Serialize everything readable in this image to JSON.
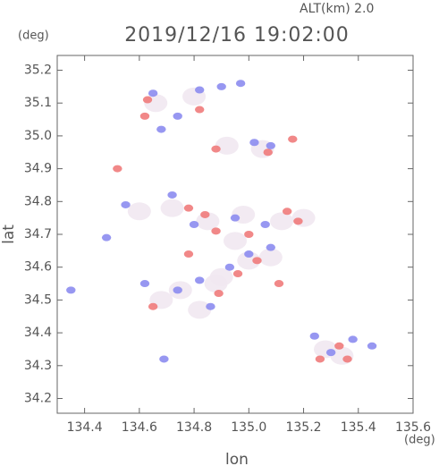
{
  "chart_data": {
    "type": "scatter",
    "title": "2019/12/16 19:02:00",
    "subtitle": "ALT(km) 2.0",
    "y_unit": "(deg)",
    "x_unit": "(deg)",
    "xlabel": "lon",
    "ylabel": "lat",
    "xlim": [
      134.3,
      135.6
    ],
    "ylim": [
      34.155,
      35.245
    ],
    "xticks": [
      134.4,
      134.6,
      134.8,
      {
        "value": 135.0,
        "label": "135.0"
      },
      135.2,
      135.4,
      135.6
    ],
    "yticks": [
      34.2,
      34.3,
      34.4,
      34.5,
      34.6,
      34.7,
      34.8,
      34.9,
      {
        "value": 35.0,
        "label": "35.0"
      },
      35.1,
      35.2
    ],
    "series": [
      {
        "color": "#f1e8f1",
        "x": [
          134.66,
          134.8,
          134.92,
          135.05,
          134.6,
          134.72,
          134.85,
          134.98,
          135.12,
          135.2,
          134.75,
          134.88,
          135.0,
          135.08,
          134.68,
          134.82,
          135.28,
          135.34,
          134.95,
          134.9
        ],
        "y": [
          35.1,
          35.12,
          34.97,
          34.96,
          34.77,
          34.78,
          34.74,
          34.76,
          34.74,
          34.75,
          34.53,
          34.55,
          34.62,
          34.63,
          34.5,
          34.47,
          34.35,
          34.33,
          34.68,
          34.57
        ]
      },
      {
        "color": "#ef7b7b",
        "x": [
          134.52,
          134.63,
          134.62,
          134.82,
          134.88,
          135.07,
          135.16,
          134.78,
          134.84,
          134.88,
          135.14,
          135.18,
          135.03,
          134.89,
          135.11,
          134.65,
          134.96,
          135.26,
          135.36,
          134.78,
          135.33,
          135.0
        ],
        "y": [
          34.9,
          35.11,
          35.06,
          35.08,
          34.96,
          34.95,
          34.99,
          34.78,
          34.76,
          34.71,
          34.77,
          34.74,
          34.62,
          34.52,
          34.55,
          34.48,
          34.58,
          34.32,
          34.32,
          34.64,
          34.36,
          34.7
        ]
      },
      {
        "color": "#8c8cf0",
        "x": [
          134.65,
          134.68,
          134.74,
          134.82,
          134.9,
          134.97,
          135.02,
          135.08,
          134.55,
          134.72,
          134.8,
          134.95,
          135.06,
          134.62,
          134.74,
          134.82,
          134.93,
          135.0,
          135.08,
          135.24,
          135.3,
          135.45,
          134.48,
          134.35,
          134.69,
          134.86,
          135.38
        ],
        "y": [
          35.13,
          35.02,
          35.06,
          35.14,
          35.15,
          35.16,
          34.98,
          34.97,
          34.79,
          34.82,
          34.73,
          34.75,
          34.73,
          34.55,
          34.53,
          34.56,
          34.6,
          34.64,
          34.66,
          34.39,
          34.34,
          34.36,
          34.69,
          34.53,
          34.32,
          34.48,
          34.38
        ]
      }
    ]
  }
}
